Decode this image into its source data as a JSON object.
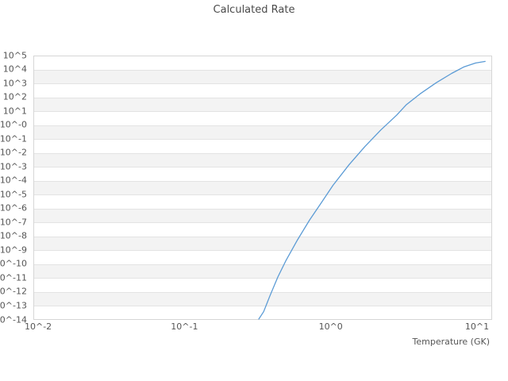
{
  "title": "Calculated Rate",
  "x_axis": {
    "label": "Temperature (GK)",
    "tick_labels": [
      "10^-2",
      "10^-1",
      "10^0",
      "10^1"
    ],
    "tick_exponents": [
      -2,
      -1,
      0,
      1
    ]
  },
  "y_axis": {
    "label": "",
    "tick_labels": [
      "10^5",
      "10^4",
      "10^3",
      "10^2",
      "10^1",
      "10^-0",
      "10^-1",
      "10^-2",
      "10^-3",
      "10^-4",
      "10^-5",
      "10^-6",
      "10^-7",
      "10^-8",
      "10^-9",
      "10^-10",
      "10^-11",
      "10^-12",
      "10^-13",
      "10^-14"
    ],
    "tick_exponents": [
      5,
      4,
      3,
      2,
      1,
      0,
      -1,
      -2,
      -3,
      -4,
      -5,
      -6,
      -7,
      -8,
      -9,
      -10,
      -11,
      -12,
      -13,
      -14
    ]
  },
  "colors": {
    "line": "#5b9bd5",
    "band_gray": "#f3f3f3",
    "gridline": "#e3e3e3",
    "plot_border": "#d6d6d6",
    "tick_text": "#555555",
    "title_text": "#4a4a4a"
  },
  "chart_data": {
    "type": "line",
    "title": "Calculated Rate",
    "xlabel": "Temperature (GK)",
    "ylabel": "",
    "x_scale": "log",
    "y_scale": "log",
    "xlim_log10": [
      -2.033,
      1.103
    ],
    "ylim_log10": [
      -14,
      5
    ],
    "x_tick_exponents": [
      -2,
      -1,
      0,
      1
    ],
    "y_tick_exponents": [
      5,
      4,
      3,
      2,
      1,
      0,
      -1,
      -2,
      -3,
      -4,
      -5,
      -6,
      -7,
      -8,
      -9,
      -10,
      -11,
      -12,
      -13,
      -14
    ],
    "grid": "horizontal-only",
    "background_bands": "alternating white/gray per decade, top band white",
    "legend": "none",
    "series": [
      {
        "name": "calculated-rate",
        "points_T_rate": [
          [
            0.322,
            1e-14
          ],
          [
            0.348,
            3.5e-14
          ],
          [
            0.384,
            4.8e-13
          ],
          [
            0.435,
            1.1e-11
          ],
          [
            0.493,
            1.6e-10
          ],
          [
            0.594,
            5.4e-09
          ],
          [
            0.718,
            1.45e-07
          ],
          [
            0.865,
            2.6e-06
          ],
          [
            1.04,
            4.7e-05
          ],
          [
            1.34,
            0.00145
          ],
          [
            1.72,
            0.0295
          ],
          [
            2.21,
            0.47
          ],
          [
            2.84,
            5.6
          ],
          [
            3.3,
            31
          ],
          [
            4.12,
            195
          ],
          [
            5.3,
            1230
          ],
          [
            6.79,
            5900
          ],
          [
            8.2,
            17000
          ],
          [
            9.89,
            33000
          ],
          [
            11.5,
            43000
          ]
        ]
      }
    ]
  }
}
